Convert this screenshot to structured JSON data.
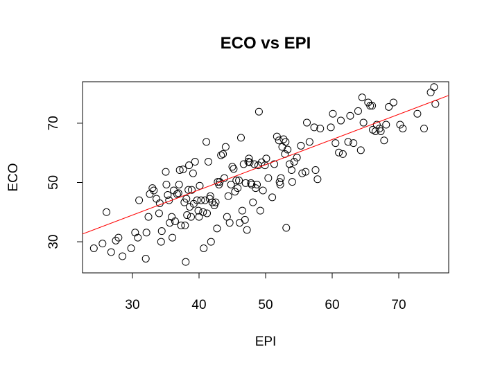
{
  "chart_data": {
    "type": "scatter",
    "title": "ECO vs EPI",
    "xlabel": "EPI",
    "ylabel": "ECO",
    "xlim": [
      22.5,
      77.5
    ],
    "ylim": [
      19.5,
      84
    ],
    "xticks": [
      30,
      40,
      50,
      60,
      70
    ],
    "yticks": [
      30,
      50,
      70
    ],
    "grid": false,
    "point_color": "#000000",
    "regression_line": {
      "color": "#ff0000",
      "intercept": 13.5,
      "slope": 0.85
    },
    "points": [
      [
        24.2,
        27.8
      ],
      [
        25.5,
        29.4
      ],
      [
        26.1,
        40.0
      ],
      [
        26.8,
        26.5
      ],
      [
        27.5,
        30.4
      ],
      [
        27.9,
        31.4
      ],
      [
        28.5,
        25.1
      ],
      [
        29.8,
        27.8
      ],
      [
        30.4,
        33.1
      ],
      [
        30.8,
        31.4
      ],
      [
        31.0,
        44.0
      ],
      [
        32.0,
        24.3
      ],
      [
        32.1,
        33.1
      ],
      [
        32.4,
        38.4
      ],
      [
        32.6,
        46.1
      ],
      [
        33.0,
        48.1
      ],
      [
        33.2,
        47.3
      ],
      [
        33.6,
        44.5
      ],
      [
        34.0,
        39.6
      ],
      [
        34.1,
        43.0
      ],
      [
        34.3,
        30.0
      ],
      [
        34.4,
        33.6
      ],
      [
        35.0,
        53.6
      ],
      [
        35.1,
        49.3
      ],
      [
        35.3,
        45.8
      ],
      [
        35.5,
        44.0
      ],
      [
        35.6,
        36.4
      ],
      [
        35.9,
        38.4
      ],
      [
        36.0,
        31.4
      ],
      [
        36.2,
        47.3
      ],
      [
        36.4,
        36.9
      ],
      [
        36.7,
        46.1
      ],
      [
        36.9,
        46.4
      ],
      [
        37.0,
        49.3
      ],
      [
        37.1,
        54.2
      ],
      [
        37.3,
        35.5
      ],
      [
        37.6,
        54.4
      ],
      [
        37.8,
        43.3
      ],
      [
        37.9,
        35.5
      ],
      [
        38.0,
        23.2
      ],
      [
        38.1,
        44.5
      ],
      [
        38.2,
        39.0
      ],
      [
        38.4,
        47.5
      ],
      [
        38.5,
        55.8
      ],
      [
        38.6,
        41.8
      ],
      [
        38.8,
        38.4
      ],
      [
        38.9,
        47.5
      ],
      [
        39.1,
        53.1
      ],
      [
        39.2,
        42.8
      ],
      [
        39.4,
        57.0
      ],
      [
        39.7,
        44.0
      ],
      [
        39.9,
        40.5
      ],
      [
        40.0,
        38.4
      ],
      [
        40.1,
        48.9
      ],
      [
        40.3,
        44.0
      ],
      [
        40.6,
        40.0
      ],
      [
        40.7,
        27.8
      ],
      [
        40.9,
        44.0
      ],
      [
        41.1,
        63.7
      ],
      [
        41.2,
        39.6
      ],
      [
        41.4,
        57.0
      ],
      [
        41.6,
        44.5
      ],
      [
        41.7,
        45.4
      ],
      [
        41.8,
        30.0
      ],
      [
        42.0,
        43.3
      ],
      [
        42.3,
        42.3
      ],
      [
        42.5,
        43.3
      ],
      [
        42.7,
        34.5
      ],
      [
        42.8,
        50.2
      ],
      [
        43.0,
        49.3
      ],
      [
        43.1,
        50.2
      ],
      [
        43.3,
        59.2
      ],
      [
        43.6,
        59.6
      ],
      [
        43.8,
        51.5
      ],
      [
        44.0,
        62.0
      ],
      [
        44.2,
        38.4
      ],
      [
        44.4,
        45.4
      ],
      [
        44.6,
        36.4
      ],
      [
        44.8,
        49.3
      ],
      [
        45.0,
        55.3
      ],
      [
        45.2,
        54.6
      ],
      [
        45.4,
        46.9
      ],
      [
        45.6,
        50.7
      ],
      [
        45.8,
        48.1
      ],
      [
        46.0,
        50.7
      ],
      [
        46.1,
        36.4
      ],
      [
        46.3,
        65.1
      ],
      [
        46.5,
        40.5
      ],
      [
        46.7,
        56.2
      ],
      [
        46.9,
        37.4
      ],
      [
        47.0,
        49.8
      ],
      [
        47.2,
        34.0
      ],
      [
        47.4,
        57.0
      ],
      [
        47.5,
        58.1
      ],
      [
        47.6,
        56.8
      ],
      [
        47.8,
        49.8
      ],
      [
        47.9,
        49.3
      ],
      [
        48.1,
        43.3
      ],
      [
        48.3,
        56.2
      ],
      [
        48.5,
        48.1
      ],
      [
        48.7,
        49.3
      ],
      [
        48.9,
        55.8
      ],
      [
        49.0,
        73.9
      ],
      [
        49.2,
        40.5
      ],
      [
        49.4,
        56.8
      ],
      [
        49.6,
        47.3
      ],
      [
        49.9,
        55.8
      ],
      [
        50.1,
        58.1
      ],
      [
        50.4,
        51.5
      ],
      [
        51.0,
        45.0
      ],
      [
        51.3,
        56.2
      ],
      [
        51.7,
        65.5
      ],
      [
        52.0,
        64.2
      ],
      [
        52.1,
        50.2
      ],
      [
        52.2,
        49.3
      ],
      [
        52.3,
        51.5
      ],
      [
        52.5,
        62.0
      ],
      [
        52.7,
        64.6
      ],
      [
        52.9,
        59.6
      ],
      [
        53.0,
        63.7
      ],
      [
        53.1,
        34.7
      ],
      [
        53.3,
        61.1
      ],
      [
        53.6,
        56.2
      ],
      [
        53.9,
        54.2
      ],
      [
        54.0,
        50.2
      ],
      [
        54.3,
        57.0
      ],
      [
        54.7,
        58.4
      ],
      [
        55.3,
        62.4
      ],
      [
        55.5,
        53.1
      ],
      [
        56.0,
        53.6
      ],
      [
        56.2,
        70.2
      ],
      [
        56.6,
        63.7
      ],
      [
        57.3,
        68.6
      ],
      [
        57.5,
        54.2
      ],
      [
        57.8,
        51.1
      ],
      [
        58.2,
        68.2
      ],
      [
        59.8,
        68.6
      ],
      [
        60.1,
        73.2
      ],
      [
        60.5,
        63.3
      ],
      [
        61.0,
        60.1
      ],
      [
        61.3,
        70.9
      ],
      [
        61.6,
        59.6
      ],
      [
        62.4,
        63.7
      ],
      [
        62.7,
        72.5
      ],
      [
        63.2,
        63.3
      ],
      [
        63.9,
        74.1
      ],
      [
        64.3,
        60.9
      ],
      [
        64.5,
        78.7
      ],
      [
        64.7,
        70.2
      ],
      [
        65.4,
        77.0
      ],
      [
        65.7,
        75.9
      ],
      [
        66.0,
        75.9
      ],
      [
        66.1,
        67.8
      ],
      [
        66.5,
        67.3
      ],
      [
        66.7,
        69.5
      ],
      [
        67.1,
        68.2
      ],
      [
        67.3,
        67.3
      ],
      [
        67.8,
        64.2
      ],
      [
        68.1,
        69.5
      ],
      [
        68.5,
        75.5
      ],
      [
        69.2,
        77.0
      ],
      [
        70.2,
        69.5
      ],
      [
        70.6,
        68.2
      ],
      [
        72.8,
        73.2
      ],
      [
        73.8,
        68.2
      ],
      [
        74.8,
        80.4
      ],
      [
        75.3,
        82.2
      ],
      [
        75.5,
        76.5
      ]
    ]
  }
}
